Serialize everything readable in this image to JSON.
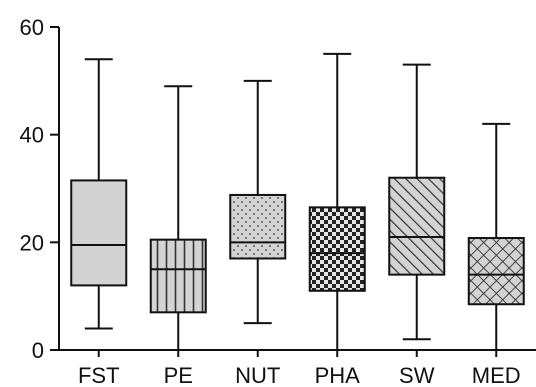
{
  "chart_data": {
    "type": "box",
    "categories": [
      "FST",
      "PE",
      "NUT",
      "PHA",
      "SW",
      "MED"
    ],
    "series": [
      {
        "category": "FST",
        "min": 4,
        "q1": 12,
        "median": 19.5,
        "q3": 31.5,
        "max": 54,
        "pattern": "solid",
        "color": "#d3d3d3"
      },
      {
        "category": "PE",
        "min": 0,
        "q1": 7,
        "median": 15,
        "q3": 20.5,
        "max": 49,
        "pattern": "vertical-lines",
        "color": "#d3d3d3"
      },
      {
        "category": "NUT",
        "min": 5,
        "q1": 17,
        "median": 20,
        "q3": 28.8,
        "max": 50,
        "pattern": "dots",
        "color": "#d3d3d3"
      },
      {
        "category": "PHA",
        "min": 0,
        "q1": 11,
        "median": 18,
        "q3": 26.5,
        "max": 55,
        "pattern": "checker",
        "color": "#d3d3d3"
      },
      {
        "category": "SW",
        "min": 2,
        "q1": 14,
        "median": 21,
        "q3": 32,
        "max": 53,
        "pattern": "diagonal-lines",
        "color": "#d3d3d3"
      },
      {
        "category": "MED",
        "min": 0,
        "q1": 8.5,
        "median": 14,
        "q3": 20.8,
        "max": 42,
        "pattern": "crosshatch",
        "color": "#d3d3d3"
      }
    ],
    "ylim": [
      0,
      60
    ],
    "yticks": [
      0,
      20,
      40,
      60
    ],
    "ytick_labels": [
      "0",
      "20",
      "40",
      "60"
    ],
    "grid": false
  }
}
